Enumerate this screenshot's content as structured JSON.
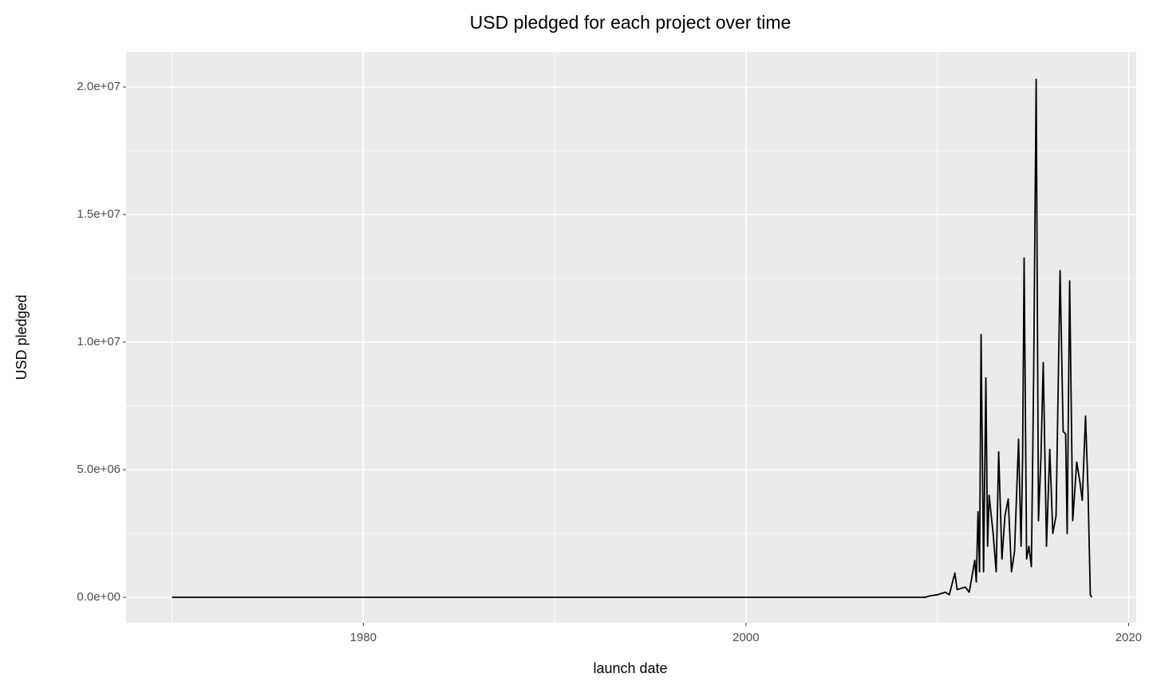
{
  "chart_data": {
    "type": "line",
    "title": "USD pledged for each project over time",
    "x_label": "launch date",
    "y_label": "USD pledged",
    "x": [
      1970.0,
      2009.38,
      2009.58,
      2010.0,
      2010.42,
      2010.63,
      2010.92,
      2011.04,
      2011.46,
      2011.67,
      2011.96,
      2012.04,
      2012.13,
      2012.21,
      2012.29,
      2012.42,
      2012.54,
      2012.63,
      2012.71,
      2012.92,
      2013.08,
      2013.21,
      2013.38,
      2013.54,
      2013.71,
      2013.88,
      2014.04,
      2014.25,
      2014.38,
      2014.46,
      2014.54,
      2014.67,
      2014.79,
      2014.92,
      2015.04,
      2015.17,
      2015.29,
      2015.42,
      2015.54,
      2015.71,
      2015.88,
      2016.04,
      2016.21,
      2016.42,
      2016.58,
      2016.71,
      2016.79,
      2016.92,
      2017.08,
      2017.29,
      2017.46,
      2017.58,
      2017.75,
      2017.88,
      2018.0,
      2018.08
    ],
    "series": [
      {
        "name": "usd_pledged",
        "color": "#000000",
        "values": [
          0,
          0,
          50000,
          100000,
          200000,
          100000,
          950000,
          300000,
          400000,
          200000,
          1450000,
          600000,
          3350000,
          1000000,
          10300000,
          1000000,
          8600000,
          2000000,
          4000000,
          2500000,
          1000000,
          5700000,
          1500000,
          3200000,
          3850000,
          1000000,
          1800000,
          6200000,
          2000000,
          5400000,
          13300000,
          1500000,
          2000000,
          1200000,
          8800000,
          20300000,
          3000000,
          5500000,
          9200000,
          2000000,
          5800000,
          2500000,
          3200000,
          12800000,
          6500000,
          6400000,
          2500000,
          12400000,
          3000000,
          5300000,
          4500000,
          3800000,
          7100000,
          4200000,
          100000,
          0
        ]
      }
    ],
    "xlim": [
      1967.6,
      2020.4
    ],
    "ylim": [
      -1000000,
      21375000
    ],
    "xticks": [
      1980,
      2000,
      2020
    ],
    "yticks": [
      {
        "value": 0,
        "label": "0.0e+00"
      },
      {
        "value": 5000000,
        "label": "5.0e+06"
      },
      {
        "value": 10000000,
        "label": "1.0e+07"
      },
      {
        "value": 15000000,
        "label": "1.5e+07"
      },
      {
        "value": 20000000,
        "label": "2.0e+07"
      }
    ],
    "grid": true
  }
}
